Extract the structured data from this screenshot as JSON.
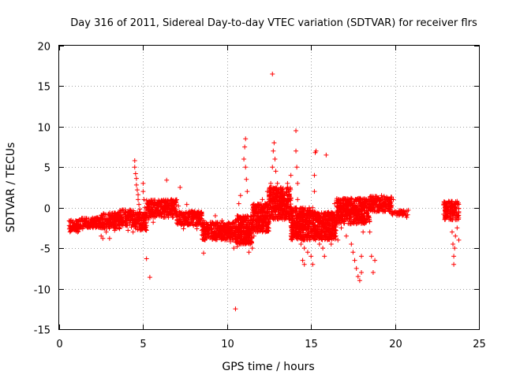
{
  "chart_data": {
    "type": "scatter",
    "title": "Day 316 of 2011, Sidereal Day-to-day VTEC variation (SDTVAR) for receiver flrs",
    "xlabel": "GPS time / hours",
    "ylabel": "SDTVAR / TECUs",
    "xlim": [
      0,
      25
    ],
    "ylim": [
      -15,
      20
    ],
    "xticks": [
      0,
      5,
      10,
      15,
      20,
      25
    ],
    "yticks": [
      -15,
      -10,
      -5,
      0,
      5,
      10,
      15,
      20
    ],
    "xtick_labels": [
      "0",
      "5",
      "10",
      "15",
      "20",
      "25"
    ],
    "ytick_labels": [
      "-15",
      "-10",
      "-5",
      "0",
      "5",
      "10",
      "15",
      "20"
    ],
    "grid": true,
    "marker": "plus",
    "color": "#ff0000",
    "series": [
      {
        "name": "flrs",
        "points": [
          [
            0.6,
            -2.2
          ],
          [
            0.7,
            -2.8
          ],
          [
            0.8,
            -1.8
          ],
          [
            0.9,
            -2.5
          ],
          [
            1.0,
            -2.0
          ],
          [
            1.1,
            -3.0
          ],
          [
            1.2,
            -1.5
          ],
          [
            1.3,
            -2.2
          ],
          [
            1.4,
            -2.6
          ],
          [
            1.5,
            -1.6
          ],
          [
            1.6,
            -2.3
          ],
          [
            1.7,
            -1.9
          ],
          [
            1.8,
            -2.4
          ],
          [
            1.9,
            -1.4
          ],
          [
            2.0,
            -2.0
          ],
          [
            2.1,
            -1.7
          ],
          [
            2.2,
            -2.3
          ],
          [
            2.3,
            -1.5
          ],
          [
            2.4,
            -1.9
          ],
          [
            2.5,
            -2.5
          ],
          [
            2.5,
            -3.5
          ],
          [
            2.6,
            -3.8
          ],
          [
            2.6,
            -1.3
          ],
          [
            2.7,
            -2.0
          ],
          [
            2.8,
            -3.0
          ],
          [
            2.9,
            -1.6
          ],
          [
            3.0,
            -2.4
          ],
          [
            3.0,
            -3.8
          ],
          [
            3.1,
            -1.2
          ],
          [
            3.2,
            -2.0
          ],
          [
            3.3,
            -2.8
          ],
          [
            3.4,
            -1.0
          ],
          [
            3.5,
            -1.8
          ],
          [
            3.6,
            -2.6
          ],
          [
            3.6,
            -0.5
          ],
          [
            3.7,
            -1.4
          ],
          [
            3.8,
            -2.2
          ],
          [
            3.9,
            -0.6
          ],
          [
            4.0,
            -1.2
          ],
          [
            4.1,
            -2.8
          ],
          [
            4.2,
            -0.4
          ],
          [
            4.2,
            -1.8
          ],
          [
            4.3,
            -2.4
          ],
          [
            4.4,
            -0.8
          ],
          [
            4.4,
            -3.0
          ],
          [
            4.5,
            5.8
          ],
          [
            4.5,
            5.0
          ],
          [
            4.55,
            4.2
          ],
          [
            4.6,
            3.6
          ],
          [
            4.6,
            2.8
          ],
          [
            4.65,
            2.2
          ],
          [
            4.7,
            1.6
          ],
          [
            4.7,
            1.0
          ],
          [
            4.75,
            0.4
          ],
          [
            4.8,
            -0.2
          ],
          [
            4.8,
            -0.8
          ],
          [
            4.85,
            -1.4
          ],
          [
            4.9,
            -2.0
          ],
          [
            4.9,
            -2.6
          ],
          [
            5.0,
            3.0
          ],
          [
            5.0,
            2.0
          ],
          [
            5.05,
            1.0
          ],
          [
            5.1,
            0.0
          ],
          [
            5.1,
            -1.0
          ],
          [
            5.15,
            -2.0
          ],
          [
            5.2,
            -2.8
          ],
          [
            5.2,
            -6.3
          ],
          [
            5.4,
            -8.6
          ],
          [
            5.3,
            -1.5
          ],
          [
            5.4,
            0.5
          ],
          [
            5.5,
            -0.5
          ],
          [
            5.6,
            -1.8
          ],
          [
            5.7,
            0.0
          ],
          [
            5.8,
            -1.0
          ],
          [
            5.9,
            0.5
          ],
          [
            6.0,
            -0.8
          ],
          [
            6.1,
            0.8
          ],
          [
            6.2,
            -0.5
          ],
          [
            6.3,
            0.3
          ],
          [
            6.4,
            3.4
          ],
          [
            6.5,
            0.8
          ],
          [
            6.6,
            -0.2
          ],
          [
            6.7,
            1.0
          ],
          [
            6.8,
            0.0
          ],
          [
            6.9,
            0.6
          ],
          [
            7.0,
            -0.6
          ],
          [
            7.1,
            0.2
          ],
          [
            7.2,
            2.5
          ],
          [
            7.3,
            -0.8
          ],
          [
            7.4,
            -2.6
          ],
          [
            7.5,
            -1.2
          ],
          [
            7.6,
            0.4
          ],
          [
            7.7,
            -1.5
          ],
          [
            7.8,
            -2.0
          ],
          [
            7.9,
            -0.6
          ],
          [
            8.0,
            -2.2
          ],
          [
            8.1,
            -1.0
          ],
          [
            8.2,
            -2.6
          ],
          [
            8.3,
            -1.4
          ],
          [
            8.4,
            -0.8
          ],
          [
            8.5,
            -2.8
          ],
          [
            8.6,
            -5.6
          ],
          [
            8.6,
            -1.6
          ],
          [
            8.7,
            -3.0
          ],
          [
            8.8,
            -2.0
          ],
          [
            8.9,
            -3.2
          ],
          [
            9.0,
            -1.8
          ],
          [
            9.1,
            -3.4
          ],
          [
            9.2,
            -2.2
          ],
          [
            9.3,
            -1.0
          ],
          [
            9.4,
            -3.6
          ],
          [
            9.5,
            -2.6
          ],
          [
            9.6,
            -3.0
          ],
          [
            9.7,
            -1.6
          ],
          [
            9.8,
            -3.8
          ],
          [
            9.9,
            -2.4
          ],
          [
            10.0,
            -4.0
          ],
          [
            10.1,
            -3.0
          ],
          [
            10.2,
            -4.2
          ],
          [
            10.3,
            -2.8
          ],
          [
            10.4,
            -5.0
          ],
          [
            10.5,
            -12.5
          ],
          [
            10.5,
            -3.6
          ],
          [
            10.6,
            -4.8
          ],
          [
            10.6,
            -1.0
          ],
          [
            10.7,
            0.5
          ],
          [
            10.7,
            -3.0
          ],
          [
            10.8,
            1.5
          ],
          [
            10.8,
            -4.5
          ],
          [
            10.9,
            -2.0
          ],
          [
            11.0,
            -4.0
          ],
          [
            11.0,
            6.0
          ],
          [
            11.05,
            7.5
          ],
          [
            11.1,
            8.5
          ],
          [
            11.1,
            5.0
          ],
          [
            11.15,
            3.5
          ],
          [
            11.2,
            2.0
          ],
          [
            11.2,
            -1.0
          ],
          [
            11.3,
            -3.0
          ],
          [
            11.3,
            -5.5
          ],
          [
            11.4,
            -4.0
          ],
          [
            11.5,
            -2.0
          ],
          [
            11.5,
            -5.0
          ],
          [
            11.6,
            -3.5
          ],
          [
            11.7,
            -1.0
          ],
          [
            11.8,
            -3.0
          ],
          [
            11.9,
            0.0
          ],
          [
            12.0,
            -2.5
          ],
          [
            12.1,
            1.0
          ],
          [
            12.2,
            -1.8
          ],
          [
            12.3,
            0.5
          ],
          [
            12.4,
            2.0
          ],
          [
            12.4,
            -1.0
          ],
          [
            12.5,
            1.0
          ],
          [
            12.6,
            3.0
          ],
          [
            12.7,
            16.5
          ],
          [
            12.7,
            5.0
          ],
          [
            12.75,
            7.0
          ],
          [
            12.8,
            8.0
          ],
          [
            12.85,
            6.0
          ],
          [
            12.9,
            4.5
          ],
          [
            13.0,
            3.0
          ],
          [
            13.0,
            1.0
          ],
          [
            13.1,
            2.0
          ],
          [
            13.2,
            0.0
          ],
          [
            13.3,
            1.5
          ],
          [
            13.4,
            -1.0
          ],
          [
            13.5,
            0.5
          ],
          [
            13.6,
            3.0
          ],
          [
            13.7,
            2.0
          ],
          [
            13.8,
            0.0
          ],
          [
            13.8,
            4.0
          ],
          [
            13.9,
            -1.5
          ],
          [
            14.0,
            -2.5
          ],
          [
            14.1,
            9.5
          ],
          [
            14.1,
            7.0
          ],
          [
            14.15,
            5.0
          ],
          [
            14.2,
            3.0
          ],
          [
            14.2,
            1.0
          ],
          [
            14.3,
            -1.0
          ],
          [
            14.3,
            -3.0
          ],
          [
            14.4,
            -4.5
          ],
          [
            14.5,
            -6.5
          ],
          [
            14.6,
            -7.0
          ],
          [
            14.6,
            -5.0
          ],
          [
            14.7,
            -3.5
          ],
          [
            14.8,
            -2.0
          ],
          [
            14.8,
            -5.5
          ],
          [
            14.9,
            -1.0
          ],
          [
            15.0,
            -3.0
          ],
          [
            15.0,
            -6.0
          ],
          [
            15.1,
            -7.0
          ],
          [
            15.1,
            0.0
          ],
          [
            15.2,
            2.0
          ],
          [
            15.2,
            4.0
          ],
          [
            15.25,
            6.8
          ],
          [
            15.3,
            7.0
          ],
          [
            15.3,
            -1.0
          ],
          [
            15.4,
            -3.5
          ],
          [
            15.5,
            -4.5
          ],
          [
            15.6,
            -2.0
          ],
          [
            15.7,
            -5.0
          ],
          [
            15.8,
            -6.0
          ],
          [
            15.9,
            6.5
          ],
          [
            16.0,
            -1.0
          ],
          [
            16.1,
            -3.5
          ],
          [
            16.2,
            -4.5
          ],
          [
            16.3,
            -2.5
          ],
          [
            16.4,
            0.5
          ],
          [
            16.5,
            -1.5
          ],
          [
            16.6,
            -4.0
          ],
          [
            16.7,
            0.0
          ],
          [
            16.8,
            -2.5
          ],
          [
            16.9,
            1.0
          ],
          [
            17.0,
            -1.0
          ],
          [
            17.1,
            -3.5
          ],
          [
            17.2,
            0.5
          ],
          [
            17.3,
            -2.0
          ],
          [
            17.4,
            -4.5
          ],
          [
            17.5,
            -5.5
          ],
          [
            17.6,
            -6.5
          ],
          [
            17.7,
            -7.5
          ],
          [
            17.8,
            -8.5
          ],
          [
            17.9,
            -9.0
          ],
          [
            18.0,
            -8.0
          ],
          [
            18.0,
            -6.0
          ],
          [
            18.1,
            -3.0
          ],
          [
            18.2,
            0.0
          ],
          [
            18.3,
            1.0
          ],
          [
            18.4,
            -1.0
          ],
          [
            18.5,
            -3.0
          ],
          [
            18.6,
            -6.0
          ],
          [
            18.7,
            -8.0
          ],
          [
            18.8,
            -6.5
          ],
          [
            18.8,
            0.8
          ],
          [
            18.9,
            -0.5
          ],
          [
            19.0,
            1.2
          ],
          [
            19.1,
            0.0
          ],
          [
            19.2,
            1.5
          ],
          [
            19.3,
            0.5
          ],
          [
            19.4,
            1.0
          ],
          [
            19.5,
            1.3
          ],
          [
            19.6,
            -0.2
          ],
          [
            19.7,
            1.0
          ],
          [
            19.8,
            0.3
          ],
          [
            19.9,
            1.0
          ],
          [
            20.0,
            -0.5
          ],
          [
            20.1,
            -0.6
          ],
          [
            20.3,
            -0.4
          ],
          [
            20.5,
            -0.8
          ],
          [
            20.6,
            -0.5
          ],
          [
            20.7,
            -1.2
          ],
          [
            22.9,
            -0.8
          ],
          [
            23.0,
            -1.0
          ],
          [
            23.1,
            -0.2
          ],
          [
            23.2,
            0.8
          ],
          [
            23.3,
            0.5
          ],
          [
            23.4,
            -1.5
          ],
          [
            23.4,
            -3.0
          ],
          [
            23.45,
            -4.5
          ],
          [
            23.5,
            -6.0
          ],
          [
            23.5,
            -7.0
          ],
          [
            23.55,
            -5.0
          ],
          [
            23.6,
            -3.5
          ],
          [
            23.6,
            -1.5
          ],
          [
            23.7,
            0.5
          ],
          [
            23.7,
            -2.5
          ],
          [
            23.8,
            -4.0
          ],
          [
            23.8,
            -0.5
          ]
        ]
      }
    ],
    "dense_bands": [
      {
        "x0": 0.6,
        "x1": 1.2,
        "y0": -3.0,
        "y1": -1.5
      },
      {
        "x0": 1.2,
        "x1": 2.5,
        "y0": -2.5,
        "y1": -1.2
      },
      {
        "x0": 2.5,
        "x1": 3.6,
        "y0": -2.6,
        "y1": -0.6
      },
      {
        "x0": 3.6,
        "x1": 4.5,
        "y0": -2.2,
        "y1": -0.2
      },
      {
        "x0": 4.5,
        "x1": 5.2,
        "y0": -2.8,
        "y1": -0.5
      },
      {
        "x0": 5.2,
        "x1": 7.0,
        "y0": -1.2,
        "y1": 1.0
      },
      {
        "x0": 7.0,
        "x1": 8.5,
        "y0": -2.2,
        "y1": -0.4
      },
      {
        "x0": 8.5,
        "x1": 10.5,
        "y0": -4.0,
        "y1": -1.8
      },
      {
        "x0": 10.5,
        "x1": 11.5,
        "y0": -4.5,
        "y1": -1.0
      },
      {
        "x0": 11.5,
        "x1": 12.5,
        "y0": -3.0,
        "y1": 0.5
      },
      {
        "x0": 12.5,
        "x1": 13.8,
        "y0": -1.5,
        "y1": 2.5
      },
      {
        "x0": 13.8,
        "x1": 15.0,
        "y0": -4.0,
        "y1": 0.0
      },
      {
        "x0": 15.0,
        "x1": 16.5,
        "y0": -4.0,
        "y1": -0.5
      },
      {
        "x0": 16.5,
        "x1": 18.5,
        "y0": -2.0,
        "y1": 1.2
      },
      {
        "x0": 18.5,
        "x1": 19.8,
        "y0": -0.5,
        "y1": 1.4
      },
      {
        "x0": 19.8,
        "x1": 20.8,
        "y0": -1.0,
        "y1": -0.3
      },
      {
        "x0": 22.9,
        "x1": 23.8,
        "y0": -1.5,
        "y1": 0.8
      }
    ]
  }
}
